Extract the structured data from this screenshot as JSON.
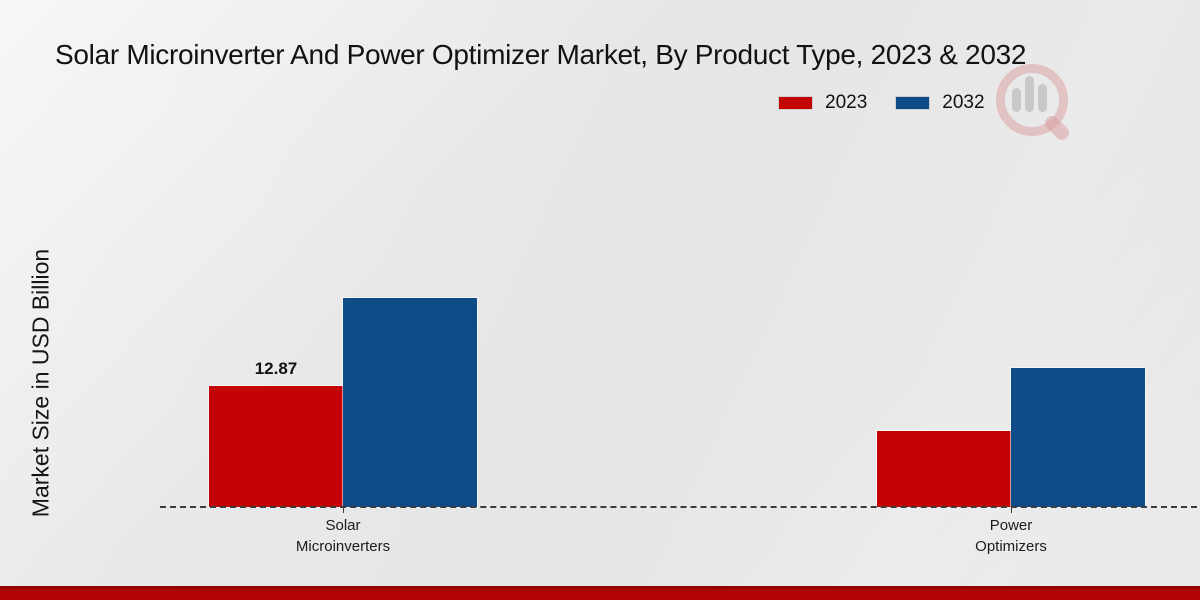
{
  "chart_data": {
    "type": "bar",
    "title": "Solar Microinverter And Power Optimizer Market, By Product Type, 2023 & 2032",
    "ylabel": "Market Size in USD Billion",
    "xlabel": "",
    "categories": [
      "Solar\nMicroinverters",
      "Power\nOptimizers"
    ],
    "series": [
      {
        "name": "2023",
        "color": "#c40404",
        "values": [
          12.87,
          8.1
        ]
      },
      {
        "name": "2032",
        "color": "#0f4c87",
        "values": [
          22.2,
          14.8
        ]
      }
    ],
    "value_labels": [
      {
        "series_index": 0,
        "category_index": 0,
        "text": "12.87"
      }
    ],
    "ylim": [
      0,
      30
    ],
    "grid": false,
    "legend_position": "top-right",
    "baseline_style": "dashed"
  },
  "colors": {
    "bar_2023": "#c40404",
    "bar_2032": "#0f4c87",
    "footer_strip": "#b30303",
    "background": "#e7e7e8",
    "baseline": "#3c3c3c",
    "text": "#121212"
  }
}
